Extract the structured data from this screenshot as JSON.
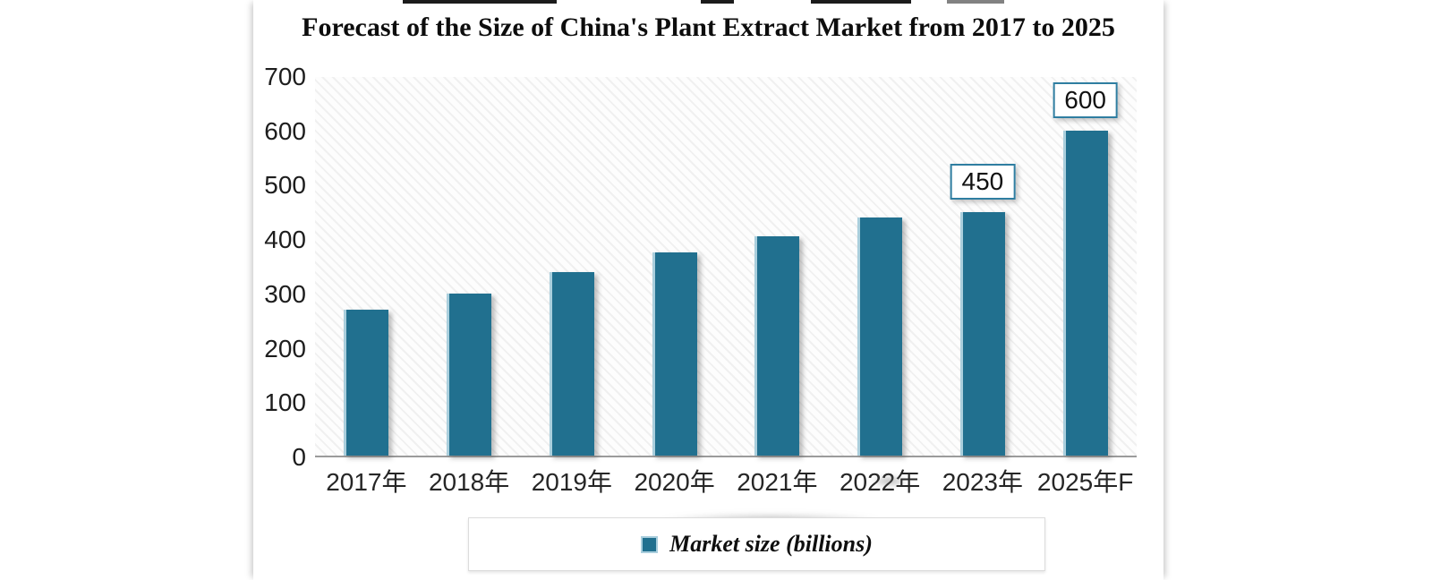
{
  "title": "Forecast of the Size of China's Plant Extract Market from 2017 to 2025",
  "chart_data": {
    "type": "bar",
    "title": "Forecast of the Size of China's Plant Extract Market from 2017 to 2025",
    "categories": [
      "2017年",
      "2018年",
      "2019年",
      "2020年",
      "2021年",
      "2022年",
      "2023年",
      "2025年F"
    ],
    "series": [
      {
        "name": "Market size (billions)",
        "values": [
          270,
          300,
          340,
          375,
          405,
          440,
          450,
          600
        ]
      }
    ],
    "data_labels": [
      null,
      null,
      null,
      null,
      null,
      null,
      "450",
      "600"
    ],
    "xlabel": "",
    "ylabel": "",
    "ylim": [
      0,
      700
    ],
    "yticks": [
      0,
      100,
      200,
      300,
      400,
      500,
      600,
      700
    ],
    "grid": false,
    "legend_position": "bottom",
    "colors": {
      "bar": "#21708f",
      "bar_edge_highlight": "#aacfdd",
      "value_label_border": "#2f7ea1",
      "axis_line": "#9b9b9b"
    }
  },
  "legend": {
    "label": "Market size (billions)"
  }
}
